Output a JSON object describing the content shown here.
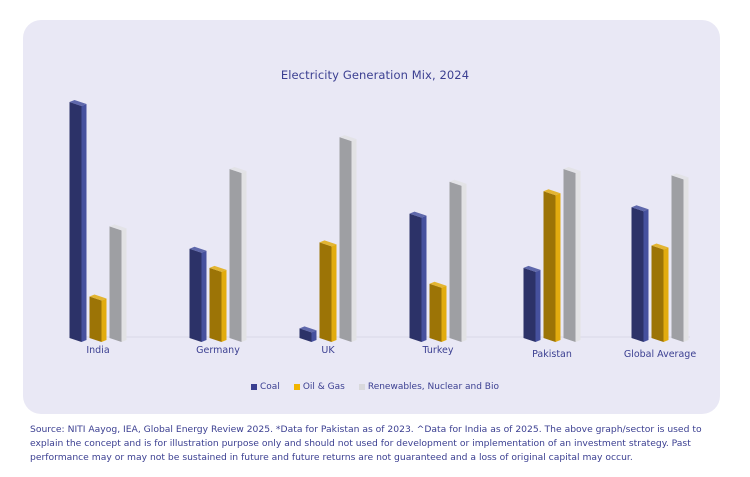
{
  "colors": {
    "card_bg": "#e9e8f5",
    "text": "#3b3f91",
    "coal_front": "#46519e",
    "coal_side": "#2c3268",
    "oil_front": "#e2ac0f",
    "oil_side": "#9c7406",
    "ren_front": "#e2e2e4",
    "ren_side": "#9e9fa3",
    "baseline": "#d9d8e8"
  },
  "chart_data": {
    "type": "bar",
    "title": "Electricity Generation Mix, 2024",
    "xlabel": "",
    "ylabel": "",
    "ylim": [
      0,
      80
    ],
    "grid": false,
    "legend_position": "bottom",
    "style": "3d-clustered-column",
    "categories": [
      "India",
      "Germany",
      "UK",
      "Turkey",
      "Pakistan",
      "Global Average"
    ],
    "series": [
      {
        "name": "Coal",
        "key": "coal",
        "values": [
          74,
          28,
          3,
          39,
          22,
          41
        ]
      },
      {
        "name": "Oil & Gas",
        "key": "oil",
        "values": [
          13,
          22,
          30,
          17,
          46,
          29
        ]
      },
      {
        "name": "Renewables, Nuclear and Bio",
        "key": "ren",
        "values": [
          35,
          53,
          63,
          49,
          53,
          51
        ]
      }
    ]
  },
  "legend": [
    {
      "label": "Coal",
      "color": "#3a3f91"
    },
    {
      "label": "Oil & Gas",
      "color": "#f1b500"
    },
    {
      "label": "Renewables, Nuclear and Bio",
      "color": "#d9d9dc"
    }
  ],
  "footnote": "Source: NITI Aayog, IEA, Global Energy Review 2025. *Data for Pakistan as of 2023. ^Data for India as of 2025. The above graph/sector is used to explain the concept and is for illustration purpose only and should not used for development or implementation of an investment strategy. Past performance may or may not be sustained in future and future returns are not guaranteed and a loss of original capital may occur."
}
